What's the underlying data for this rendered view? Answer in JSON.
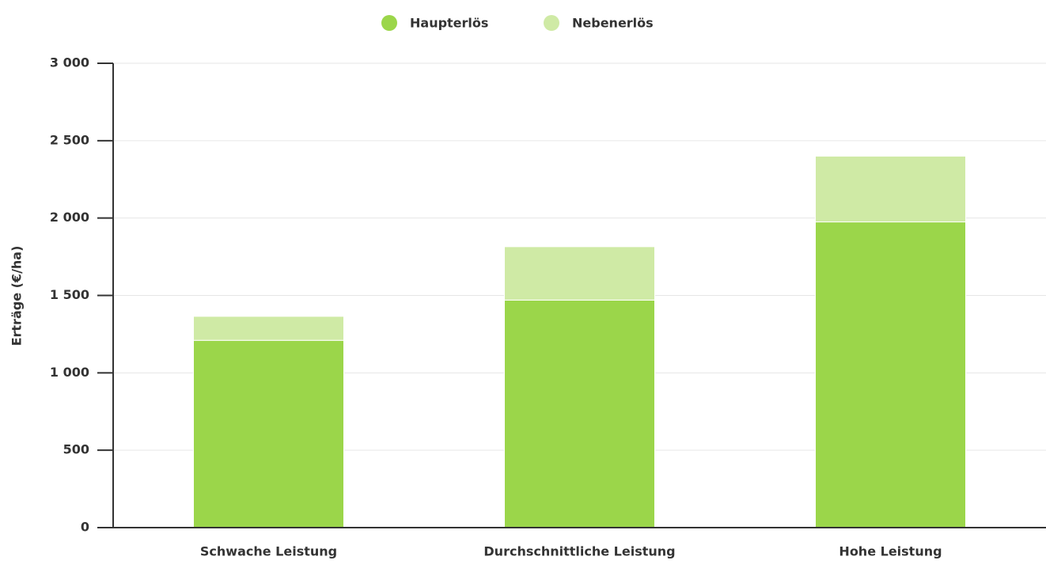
{
  "chart_data": {
    "type": "stacked_bar",
    "y_label": "Erträge (€/ha)",
    "categories": [
      "Schwache Leistung",
      "Durchschnittliche Leistung",
      "Hohe Leistung"
    ],
    "series": [
      {
        "name": "Haupterlös",
        "color": "#9bd64a",
        "values": [
          1210,
          1470,
          1975
        ]
      },
      {
        "name": "Nebenerlös",
        "color": "#cfeaa5",
        "values": [
          155,
          345,
          425
        ]
      }
    ],
    "ylim": [
      0,
      3000
    ],
    "yticks": [
      0,
      500,
      {
        "value": 1000,
        "label": "1 000"
      },
      {
        "value": 1500,
        "label": "1 500"
      },
      {
        "value": 2000,
        "label": "2 000"
      },
      {
        "value": 2500,
        "label": "2 500"
      },
      {
        "value": 3000,
        "label": "3 000"
      }
    ],
    "grid": true,
    "legend": "top"
  }
}
